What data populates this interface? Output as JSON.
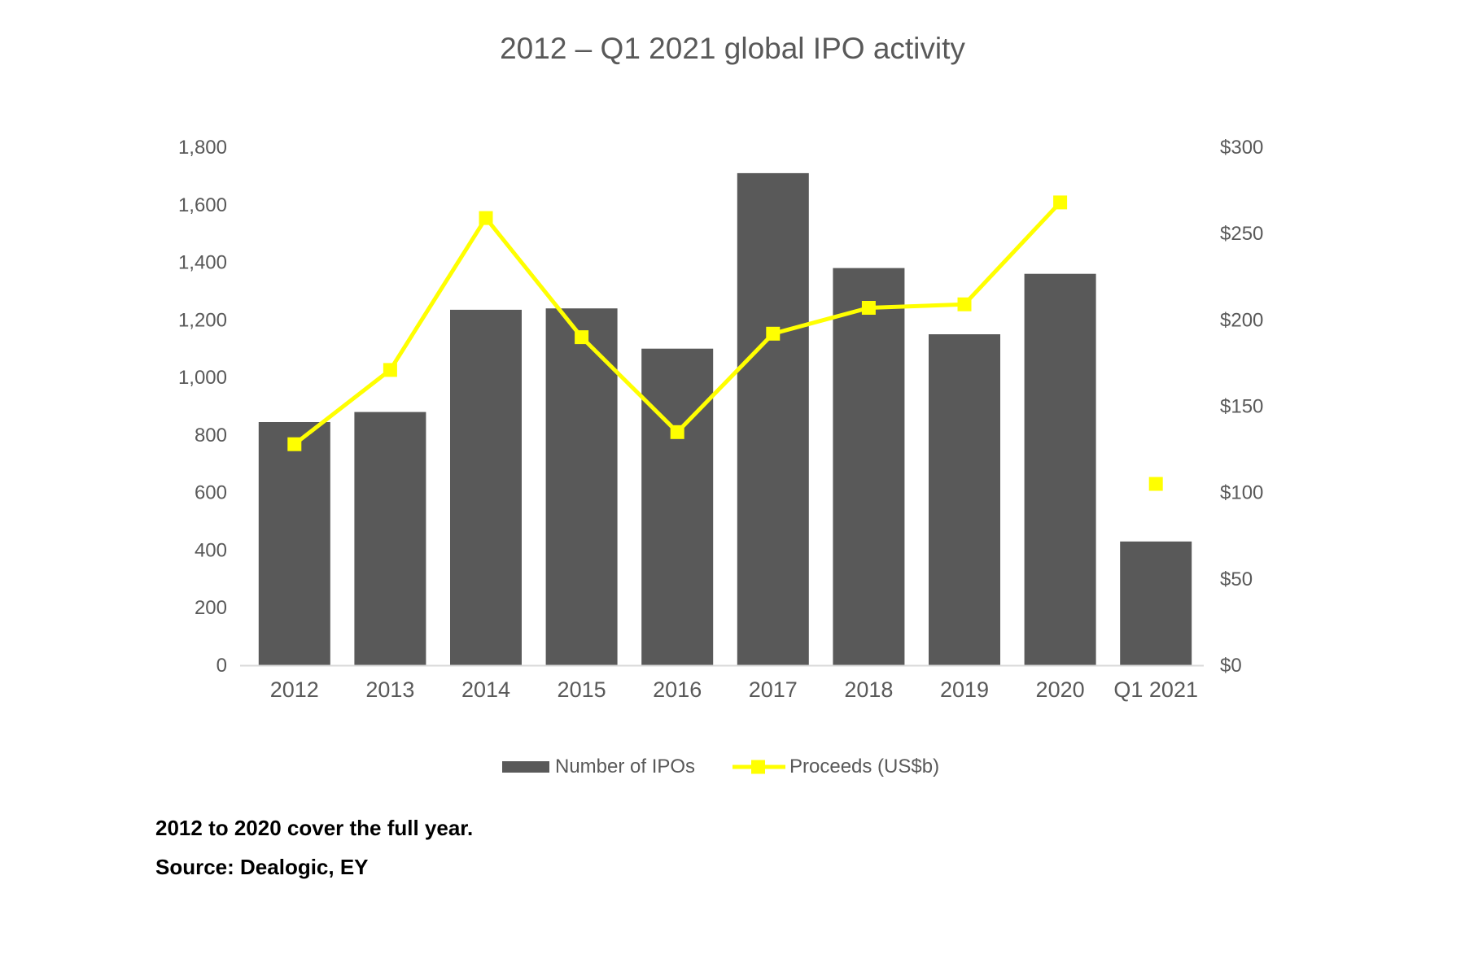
{
  "chart_data": {
    "type": "bar",
    "title": "2012 – Q1 2021 global IPO activity",
    "categories": [
      "2012",
      "2013",
      "2014",
      "2015",
      "2016",
      "2017",
      "2018",
      "2019",
      "2020",
      "Q1 2021"
    ],
    "series": [
      {
        "name": "Number of IPOs",
        "type": "bar",
        "axis": "left",
        "color": "#595959",
        "values": [
          845,
          880,
          1235,
          1240,
          1100,
          1710,
          1380,
          1150,
          1360,
          430
        ]
      },
      {
        "name": "Proceeds (US$b)",
        "type": "line",
        "axis": "right",
        "color": "#ffff00",
        "marker": "square",
        "values": [
          128,
          171,
          259,
          190,
          135,
          192,
          207,
          209,
          268,
          105
        ],
        "connected": [
          true,
          true,
          true,
          true,
          true,
          true,
          true,
          true,
          true,
          false
        ]
      }
    ],
    "y_left": {
      "ylim": [
        0,
        1800
      ],
      "ticks": [
        0,
        200,
        400,
        600,
        800,
        1000,
        1200,
        1400,
        1600,
        1800
      ],
      "tick_labels": [
        "0",
        "200",
        "400",
        "600",
        "800",
        "1,000",
        "1,200",
        "1,400",
        "1,600",
        "1,800"
      ]
    },
    "y_right": {
      "ylim": [
        0,
        300
      ],
      "ticks": [
        0,
        50,
        100,
        150,
        200,
        250,
        300
      ],
      "tick_labels": [
        "$0",
        "$50",
        "$100",
        "$150",
        "$200",
        "$250",
        "$300"
      ]
    },
    "xlabel": "",
    "ylabel": "",
    "grid": false,
    "legend_position": "bottom"
  },
  "notes": [
    "2012 to 2020 cover the full year.",
    "Source: Dealogic, EY"
  ]
}
